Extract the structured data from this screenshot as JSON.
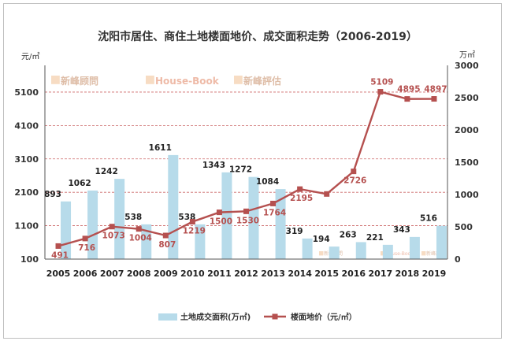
{
  "chart_data": {
    "type": "bar+line",
    "title": "沈阳市居住、商住土地楼面地价、成交面积走势（2006-2019）",
    "left_unit": "元/㎡",
    "right_unit": "万㎡",
    "categories": [
      "2005",
      "2006",
      "2007",
      "2008",
      "2009",
      "2010",
      "2011",
      "2012",
      "2013",
      "2014",
      "2015",
      "2016",
      "2017",
      "2018",
      "2019"
    ],
    "left_ticks": [
      "100",
      "1100",
      "2100",
      "3100",
      "4100",
      "5100"
    ],
    "right_ticks": [
      "0",
      "500",
      "1000",
      "1500",
      "2000",
      "2500",
      "3000"
    ],
    "left_range": [
      100,
      5900
    ],
    "right_range": [
      0,
      3000
    ],
    "series": [
      {
        "name": "土地成交面积(万㎡)",
        "kind": "bar",
        "axis": "right",
        "color": "#b7dbea",
        "values": [
          893,
          1062,
          1242,
          538,
          1611,
          538,
          1343,
          1272,
          1084,
          319,
          194,
          263,
          221,
          343,
          516
        ],
        "labels": [
          "893",
          "1062",
          "1242",
          "538",
          "1611",
          "538",
          "1343",
          "1272",
          "1084",
          "319",
          "194",
          "263",
          "221",
          "343",
          "516"
        ]
      },
      {
        "name": "楼面地价（元/㎡）",
        "kind": "line",
        "axis": "left",
        "color": "#b5504f",
        "values": [
          491,
          716,
          1073,
          1004,
          807,
          1219,
          1500,
          1530,
          1764,
          2195,
          2050,
          2726,
          5109,
          4895,
          4897
        ],
        "labels": [
          "491",
          "716",
          "1073",
          "1004",
          "807",
          "1219",
          "1500",
          "1530",
          "1764",
          "2195",
          "",
          "2726",
          "5109",
          "4895",
          "4897"
        ]
      }
    ],
    "watermarks": [
      "新峰顾問",
      "House-Book",
      "新峰評估",
      "新峰顾問",
      "House-Book",
      "新峰評估"
    ],
    "grid": "dashed-red-horizontal",
    "legend": "bottom"
  }
}
